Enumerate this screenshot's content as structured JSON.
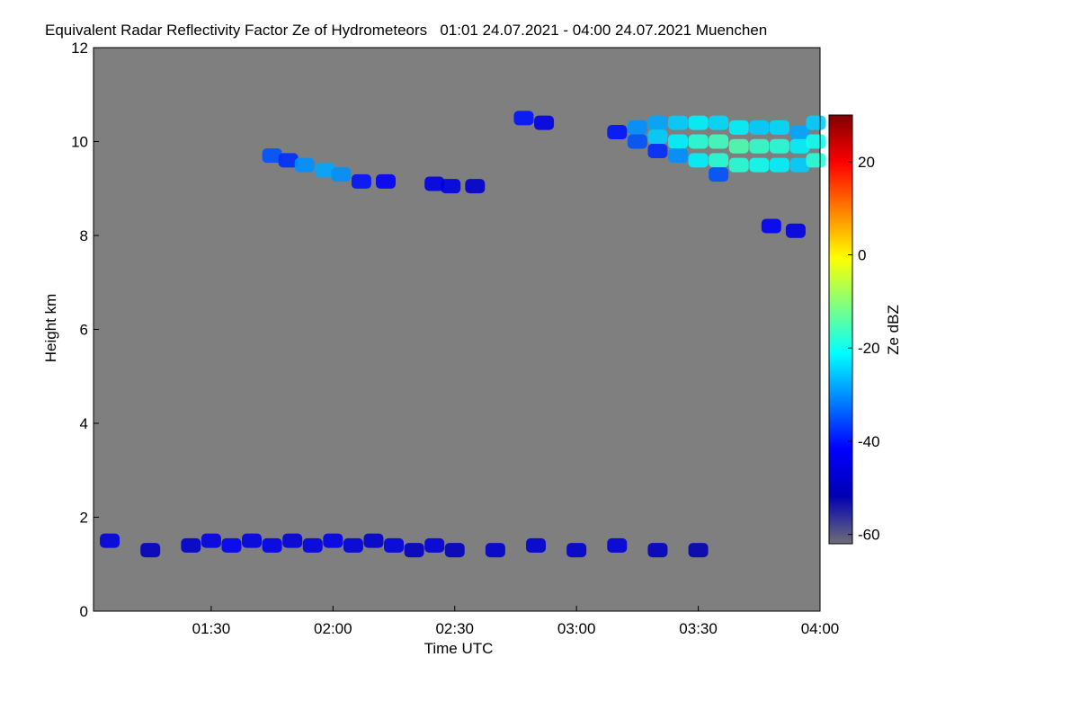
{
  "chart_data": {
    "type": "heatmap",
    "title": "Equivalent Radar Reflectivity Factor Ze of Hydrometeors   01:01 24.07.2021 - 04:00 24.07.2021 Muenchen",
    "x_label": "Time UTC",
    "y_label": "Height km",
    "colorbar_label": "Ze dBZ",
    "xlim": [
      61,
      240
    ],
    "xticks": [
      {
        "value": 90,
        "label": "01:30"
      },
      {
        "value": 120,
        "label": "02:00"
      },
      {
        "value": 150,
        "label": "02:30"
      },
      {
        "value": 180,
        "label": "03:00"
      },
      {
        "value": 210,
        "label": "03:30"
      },
      {
        "value": 240,
        "label": "04:00"
      }
    ],
    "ylim": [
      0,
      12
    ],
    "yticks": [
      0,
      2,
      4,
      6,
      8,
      10,
      12
    ],
    "clim": [
      -62,
      30
    ],
    "cticks": [
      -60,
      -40,
      -20,
      0,
      20
    ],
    "colorscale": [
      "#6e6e78",
      "#0000b4",
      "#0000ff",
      "#0080ff",
      "#00ffff",
      "#80ff80",
      "#ffff00",
      "#ff8000",
      "#ff0000",
      "#800000"
    ],
    "background": "#7f7f7f",
    "x": [
      105,
      109,
      113,
      118,
      122,
      127,
      133,
      145,
      149,
      155,
      167,
      172,
      190,
      195,
      195,
      200,
      200,
      200,
      205,
      205,
      205,
      210,
      210,
      210,
      215,
      215,
      215,
      215,
      220,
      220,
      220,
      225,
      225,
      225,
      230,
      230,
      230,
      235,
      235,
      235,
      239,
      239,
      239,
      228,
      234,
      65,
      75,
      85,
      90,
      95,
      100,
      105,
      110,
      115,
      120,
      125,
      130,
      135,
      140,
      145,
      150,
      160,
      170,
      180,
      190,
      200,
      210
    ],
    "y": [
      9.7,
      9.6,
      9.5,
      9.4,
      9.3,
      9.15,
      9.15,
      9.1,
      9.05,
      9.05,
      10.5,
      10.4,
      10.2,
      10.3,
      10.0,
      10.4,
      10.1,
      9.8,
      10.4,
      10.0,
      9.7,
      10.4,
      10.0,
      9.6,
      10.4,
      10.0,
      9.6,
      9.3,
      10.3,
      9.9,
      9.5,
      10.3,
      9.9,
      9.5,
      10.3,
      9.9,
      9.5,
      10.2,
      9.9,
      9.5,
      10.4,
      10.0,
      9.6,
      8.2,
      8.1,
      1.5,
      1.3,
      1.4,
      1.5,
      1.4,
      1.5,
      1.4,
      1.5,
      1.4,
      1.5,
      1.4,
      1.5,
      1.4,
      1.3,
      1.4,
      1.3,
      1.3,
      1.4,
      1.3,
      1.4,
      1.3,
      1.3
    ],
    "values": [
      -35,
      -38,
      -30,
      -28,
      -30,
      -40,
      -42,
      -45,
      -45,
      -48,
      -40,
      -45,
      -40,
      -30,
      -35,
      -28,
      -25,
      -38,
      -25,
      -22,
      -30,
      -22,
      -18,
      -22,
      -24,
      -16,
      -18,
      -35,
      -22,
      -15,
      -18,
      -25,
      -17,
      -20,
      -24,
      -18,
      -22,
      -28,
      -22,
      -25,
      -25,
      -20,
      -18,
      -42,
      -45,
      -45,
      -50,
      -48,
      -45,
      -42,
      -45,
      -44,
      -46,
      -45,
      -44,
      -46,
      -48,
      -45,
      -50,
      -46,
      -50,
      -48,
      -47,
      -48,
      -46,
      -50,
      -52
    ]
  }
}
